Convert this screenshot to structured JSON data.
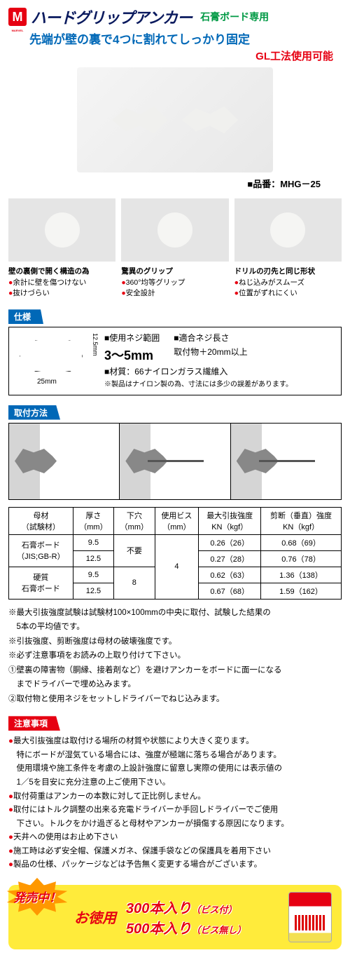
{
  "header": {
    "logo_letter": "M",
    "title": "ハードグリップアンカー",
    "subtitle": "石膏ボード専用",
    "tagline": "先端が壁の裏で4つに割れてしっかり固定",
    "gl_note": "GL工法使用可能",
    "product_code": "■品番：MHG－25"
  },
  "features": [
    {
      "title": "壁の裏側で開く構造の為",
      "points": [
        "余計に壁を傷つけない",
        "抜けづらい"
      ]
    },
    {
      "title": "驚異のグリップ",
      "points": [
        "360°均等グリップ",
        "安全設計"
      ]
    },
    {
      "title": "ドリルの刃先と同じ形状",
      "points": [
        "ねじ込みがスムーズ",
        "位置がずれにくい"
      ]
    }
  ],
  "spec": {
    "label": "仕様",
    "dim_h": "12.5mm",
    "dim_w": "25mm",
    "screw_range_label": "■使用ネジ範囲",
    "screw_range_value": "3～5mm",
    "screw_length_label": "■適合ネジ長さ",
    "screw_length_value": "取付物＋20mm以上",
    "material_label": "■材質：66ナイロンガラス繊維入",
    "material_note": "※製品はナイロン製の為、寸法には多少の誤差があります。"
  },
  "install": {
    "label": "取付方法"
  },
  "strength_table": {
    "headers": [
      "母材\n（試験材）",
      "厚さ\n（mm）",
      "下穴\n（mm）",
      "使用ビス\n（mm）",
      "最大引抜強度\nKN（kgf）",
      "剪断（垂直）強度\nKN（kgf）"
    ],
    "rows": [
      {
        "material": "石膏ボード\n（JIS;GB-R）",
        "thickness": "9.5",
        "hole": "不要",
        "screw": "4",
        "pull": "0.26（26）",
        "shear": "0.68（69）"
      },
      {
        "material": "",
        "thickness": "12.5",
        "hole": "",
        "screw": "",
        "pull": "0.27（28）",
        "shear": "0.76（78）"
      },
      {
        "material": "硬質\n石膏ボード",
        "thickness": "9.5",
        "hole": "8",
        "screw": "",
        "pull": "0.62（63）",
        "shear": "1.36（138）"
      },
      {
        "material": "",
        "thickness": "12.5",
        "hole": "",
        "screw": "",
        "pull": "0.67（68）",
        "shear": "1.59（162）"
      }
    ]
  },
  "notes": [
    "※最大引抜強度試験は試験材100×100mmの中央に取付、試験した結果の",
    "　5本の平均値です。",
    "※引抜強度、剪断強度は母材の破壊強度です。",
    "※必ず注意事項をお読みの上取り付けて下さい。",
    "①壁裏の障害物（胴縁、接着剤など）を避けアンカーをボードに面一になる",
    "　までドライバーで埋め込みます。",
    "②取付物と使用ネジをセットしドライバーでねじ込みます。"
  ],
  "caution": {
    "label": "注意事項",
    "items": [
      {
        "text": "最大引抜強度は取付ける場所の材質や状態により大きく変ります。",
        "indent": false
      },
      {
        "text": "特にボードが湿気ている場合には、強度が極端に落ちる場合があります。",
        "indent": true
      },
      {
        "text": "使用環境や施工条件を考慮の上設計強度に留意し実際の使用には表示値の",
        "indent": true
      },
      {
        "text": "1／5を目安に充分注意の上ご使用下さい。",
        "indent": true
      },
      {
        "text": "取付荷重はアンカーの本数に対して正比例しません。",
        "indent": false
      },
      {
        "text": "取付にはトルク調整の出来る充電ドライバーか手回しドライバーでご使用",
        "indent": false
      },
      {
        "text": "下さい。トルクをかけ過ぎると母材やアンカーが損傷する原因になります。",
        "indent": true
      },
      {
        "text": "天井への使用はお止め下さい",
        "indent": false
      },
      {
        "text": "施工時は必ず安全帽、保護メガネ、保護手袋などの保護具を着用下さい",
        "indent": false
      },
      {
        "text": "製品の仕様、パッケージなどは予告無く変更する場合がございます。",
        "indent": false
      }
    ]
  },
  "promo": {
    "burst": "発売中！",
    "value_label": "お徳用",
    "line1": "300本入り",
    "line1_note": "（ビス付）",
    "line2": "500本入り",
    "line2_note": "（ビス無し）"
  }
}
